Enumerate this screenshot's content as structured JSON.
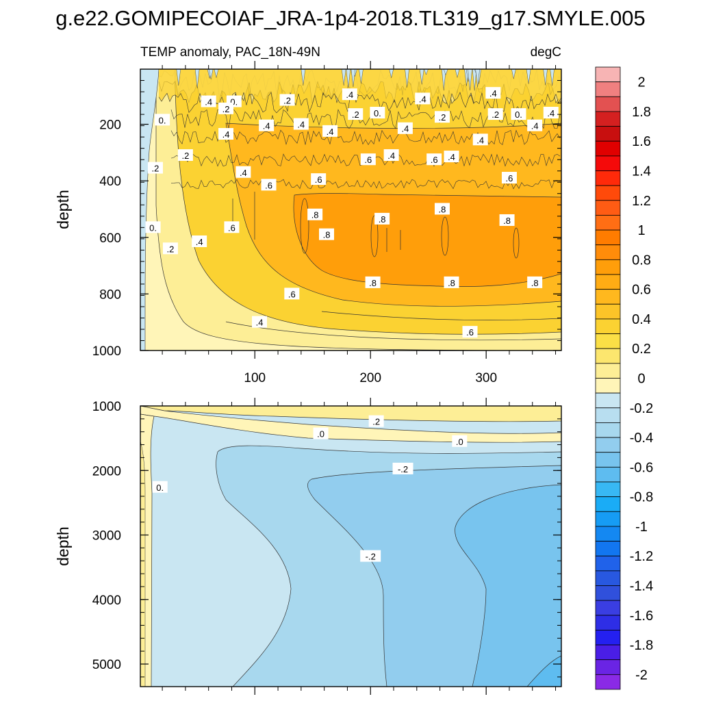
{
  "figure": {
    "title": "g.e22.GOMIPECOIAF_JRA-1p4-2018.TL319_g17.SMYLE.005"
  },
  "chart_data": [
    {
      "type": "contour",
      "panel": "upper",
      "title_left": "TEMP anomaly, PAC_18N-49N",
      "title_right": "degC",
      "xlabel": "",
      "ylabel": "depth",
      "xlim": [
        1,
        365
      ],
      "ylim": [
        1000,
        5
      ],
      "xticks": [
        100,
        200,
        300
      ],
      "yticks": [
        200,
        400,
        600,
        800,
        1000
      ],
      "contour_labels": [
        {
          "x": 20,
          "y": 185,
          "text": "0."
        },
        {
          "x": 40,
          "y": 310,
          "text": ".2"
        },
        {
          "x": 60,
          "y": 120,
          "text": ".4"
        },
        {
          "x": 82,
          "y": 120,
          "text": "0."
        },
        {
          "x": 75,
          "y": 235,
          "text": ".4"
        },
        {
          "x": 75,
          "y": 145,
          "text": ".2"
        },
        {
          "x": 128,
          "y": 115,
          "text": ".2"
        },
        {
          "x": 182,
          "y": 95,
          "text": ".4"
        },
        {
          "x": 187,
          "y": 165,
          "text": ".2"
        },
        {
          "x": 206,
          "y": 160,
          "text": "0."
        },
        {
          "x": 245,
          "y": 110,
          "text": ".4"
        },
        {
          "x": 262,
          "y": 175,
          "text": ".2"
        },
        {
          "x": 306,
          "y": 90,
          "text": ".4"
        },
        {
          "x": 308,
          "y": 165,
          "text": ".2"
        },
        {
          "x": 328,
          "y": 165,
          "text": "0."
        },
        {
          "x": 356,
          "y": 160,
          "text": ".4"
        },
        {
          "x": 110,
          "y": 205,
          "text": ".4"
        },
        {
          "x": 140,
          "y": 200,
          "text": ".4"
        },
        {
          "x": 165,
          "y": 225,
          "text": ".4"
        },
        {
          "x": 230,
          "y": 215,
          "text": ".4"
        },
        {
          "x": 295,
          "y": 255,
          "text": ".4"
        },
        {
          "x": 342,
          "y": 205,
          "text": ".4"
        },
        {
          "x": 14,
          "y": 355,
          "text": ".2"
        },
        {
          "x": 90,
          "y": 370,
          "text": ".4"
        },
        {
          "x": 112,
          "y": 415,
          "text": ".6"
        },
        {
          "x": 155,
          "y": 395,
          "text": ".6"
        },
        {
          "x": 198,
          "y": 325,
          "text": ".6"
        },
        {
          "x": 218,
          "y": 310,
          "text": ".4"
        },
        {
          "x": 255,
          "y": 325,
          "text": ".6"
        },
        {
          "x": 270,
          "y": 315,
          "text": ".4"
        },
        {
          "x": 320,
          "y": 390,
          "text": ".6"
        },
        {
          "x": 12,
          "y": 565,
          "text": "0."
        },
        {
          "x": 27,
          "y": 640,
          "text": ".2"
        },
        {
          "x": 52,
          "y": 615,
          "text": ".4"
        },
        {
          "x": 80,
          "y": 565,
          "text": ".6"
        },
        {
          "x": 152,
          "y": 520,
          "text": ".8"
        },
        {
          "x": 162,
          "y": 590,
          "text": ".8"
        },
        {
          "x": 210,
          "y": 535,
          "text": ".8"
        },
        {
          "x": 262,
          "y": 500,
          "text": ".8"
        },
        {
          "x": 318,
          "y": 540,
          "text": ".8"
        },
        {
          "x": 202,
          "y": 760,
          "text": ".8"
        },
        {
          "x": 270,
          "y": 760,
          "text": ".8"
        },
        {
          "x": 342,
          "y": 760,
          "text": ".8"
        },
        {
          "x": 132,
          "y": 800,
          "text": ".6"
        },
        {
          "x": 104,
          "y": 900,
          "text": ".4"
        },
        {
          "x": 286,
          "y": 935,
          "text": ".6"
        }
      ]
    },
    {
      "type": "contour",
      "panel": "lower",
      "title_left": "",
      "title_right": "",
      "xlabel": "",
      "ylabel": "depth",
      "xlim": [
        1,
        365
      ],
      "ylim": [
        5350,
        1000
      ],
      "xticks": [
        100,
        200,
        300
      ],
      "yticks": [
        1000,
        2000,
        3000,
        4000,
        5000
      ],
      "contour_labels": [
        {
          "x": 205,
          "y": 1240,
          "text": ".2"
        },
        {
          "x": 157,
          "y": 1430,
          "text": ".0"
        },
        {
          "x": 277,
          "y": 1550,
          "text": ".0"
        },
        {
          "x": 228,
          "y": 1975,
          "text": "-.2"
        },
        {
          "x": 18,
          "y": 2260,
          "text": "0."
        },
        {
          "x": 200,
          "y": 3330,
          "text": "-.2"
        }
      ]
    }
  ],
  "colorbar": {
    "labels": [
      "2",
      "1.8",
      "1.6",
      "1.4",
      "1.2",
      "1",
      "0.8",
      "0.6",
      "0.4",
      "0.2",
      "0",
      "-0.2",
      "-0.4",
      "-0.6",
      "-0.8",
      "-1",
      "-1.2",
      "-1.4",
      "-1.6",
      "-1.8",
      "-2"
    ],
    "colors_top_to_bottom": [
      "#f7b4b4",
      "#f08080",
      "#e35151",
      "#d42020",
      "#c80f0f",
      "#e00000",
      "#f50a0a",
      "#ff2a0a",
      "#ff4a0a",
      "#ff5c14",
      "#ff6e14",
      "#ff7c00",
      "#ff8c0a",
      "#ff9e0a",
      "#ffac14",
      "#ffb81e",
      "#fcc428",
      "#fbd232",
      "#fbdf46",
      "#fce66e",
      "#fdee96",
      "#fff5b8",
      "#c9e6f2",
      "#b8def0",
      "#a8d8ee",
      "#92cdee",
      "#78c4ee",
      "#5ebcf0",
      "#38b8f4",
      "#1aacf6",
      "#169cf4",
      "#1488f2",
      "#1276f0",
      "#2062ea",
      "#2858e0",
      "#3050dc",
      "#3a3ee2",
      "#2e2ee6",
      "#2420f0",
      "#4a1ee6",
      "#6a24e4",
      "#8a2ae6"
    ]
  },
  "field_colors": {
    "upper": {
      "neg_shallow": "#c9e6f2",
      "0": "#fff5b8",
      "0.2": "#fdee96",
      "0.4": "#fbd232",
      "0.6": "#ffb81e",
      "0.8": "#ff9e0a"
    },
    "lower": {
      "pos_top": "#fdee96",
      "near0": "#fff5b8",
      "neg1": "#c9e6f2",
      "neg2": "#a8d8ee",
      "neg3": "#92cdee",
      "neg4": "#5ebcf0"
    }
  }
}
